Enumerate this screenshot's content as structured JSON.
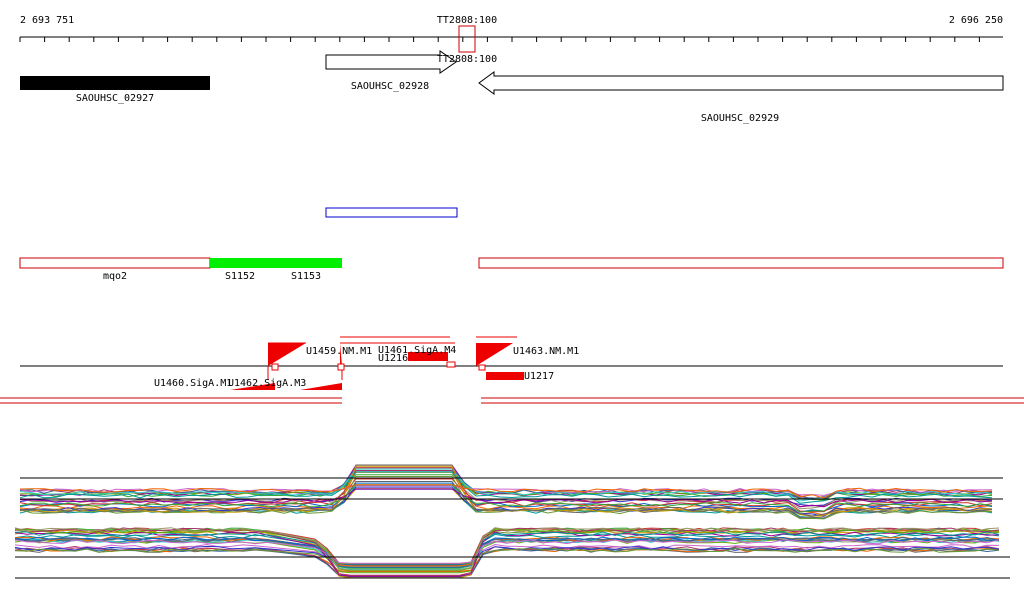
{
  "ruler": {
    "start": "2 693 751",
    "center": "TT2808:100",
    "end": "2 696 250"
  },
  "marker_label": "TT2808:100",
  "genes": [
    {
      "label": "SAOUHSC_02927"
    },
    {
      "label": "SAOUHSC_02928"
    },
    {
      "label": "SAOUHSC_02929"
    }
  ],
  "regions": [
    "mqo2",
    "S1152",
    "S1153"
  ],
  "features": [
    "U1459.NM.M1",
    "U1461.SigA.M4",
    "U1216",
    "U1463.NM.M1",
    "U1217",
    "U1460.SigA.M1",
    "U1462.SigA.M3"
  ]
}
